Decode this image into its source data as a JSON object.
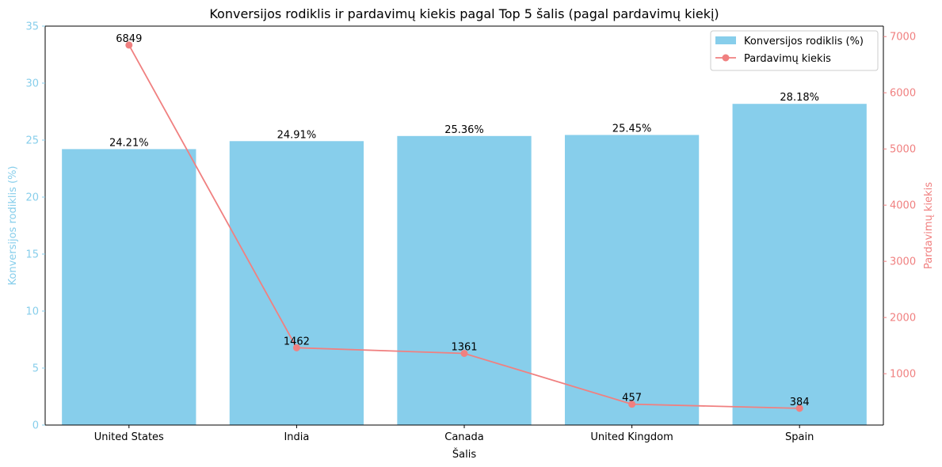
{
  "chart_data": {
    "type": "bar+line",
    "title": "Konversijos rodiklis ir pardavimų kiekis pagal Top 5 šalis (pagal pardavimų kiekį)",
    "xlabel": "Šalis",
    "categories": [
      "United States",
      "India",
      "Canada",
      "United Kingdom",
      "Spain"
    ],
    "left_axis": {
      "label": "Konversijos rodiklis (%)",
      "ylim": [
        0,
        35
      ],
      "ticks": [
        0,
        5,
        10,
        15,
        20,
        25,
        30,
        35
      ],
      "color": "#87CEEB"
    },
    "right_axis": {
      "label": "Pardavimų kiekis",
      "ylim": [
        86,
        7186
      ],
      "ticks": [
        1000,
        2000,
        3000,
        4000,
        5000,
        6000,
        7000
      ],
      "color": "#F08080"
    },
    "series": [
      {
        "name": "Konversijos rodiklis (%)",
        "type": "bar",
        "axis": "left",
        "color": "#87CEEB",
        "values": [
          24.21,
          24.91,
          25.36,
          25.45,
          28.18
        ],
        "labels": [
          "24.21%",
          "24.91%",
          "25.36%",
          "25.45%",
          "28.18%"
        ]
      },
      {
        "name": "Pardavimų kiekis",
        "type": "line",
        "axis": "right",
        "color": "#F08080",
        "values": [
          6849,
          1462,
          1361,
          457,
          384
        ],
        "labels": [
          "6849",
          "1462",
          "1361",
          "457",
          "384"
        ]
      }
    ],
    "legend_position": "top-right",
    "grid": false
  }
}
